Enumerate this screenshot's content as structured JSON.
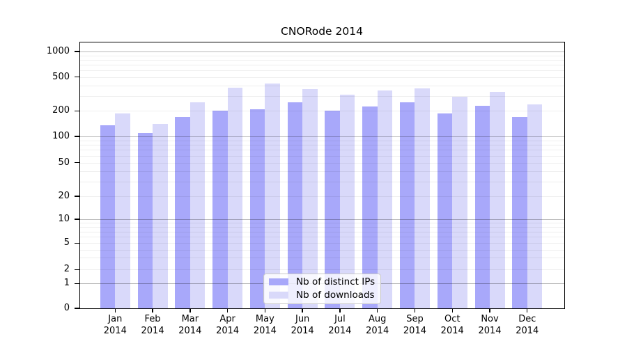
{
  "title": "CNORode 2014",
  "chart_data": {
    "type": "bar",
    "title": "CNORode 2014",
    "categories": [
      "Jan 2014",
      "Feb 2014",
      "Mar 2014",
      "Apr 2014",
      "May 2014",
      "Jun 2014",
      "Jul 2014",
      "Aug 2014",
      "Sep 2014",
      "Oct 2014",
      "Nov 2014",
      "Dec 2014"
    ],
    "series": [
      {
        "name": "Nb of distinct IPs",
        "color": "#a8a8fa",
        "values": [
          135,
          110,
          170,
          200,
          207,
          252,
          200,
          224,
          250,
          188,
          230,
          170
        ]
      },
      {
        "name": "Nb of downloads",
        "color": "#d9d9fa",
        "values": [
          185,
          140,
          250,
          375,
          420,
          360,
          310,
          350,
          370,
          293,
          335,
          240
        ]
      }
    ],
    "xlabel": "",
    "ylabel": "",
    "y_ticks": [
      0,
      1,
      2,
      5,
      10,
      20,
      50,
      100,
      200,
      500,
      1000
    ],
    "ylim": [
      0,
      1000
    ],
    "y_scale": "log",
    "grid": "log minor + major horizontal gridlines",
    "legend_position": "inside lower center"
  }
}
